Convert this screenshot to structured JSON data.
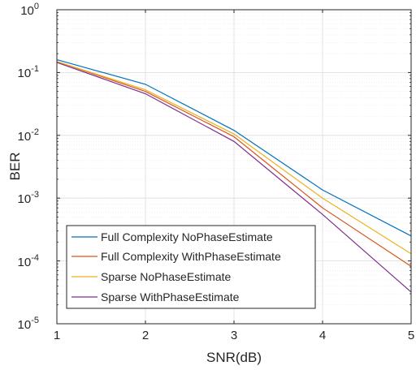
{
  "chart_data": {
    "type": "line",
    "xlabel": "SNR(dB)",
    "ylabel": "BER",
    "xlim": [
      1,
      5
    ],
    "ylim": [
      1e-05,
      1
    ],
    "yscale": "log",
    "grid": true,
    "legend_position": "bottom-left",
    "x_ticks": [
      "1",
      "2",
      "3",
      "4",
      "5"
    ],
    "y_ticks": [
      {
        "base": "10",
        "exp": "0"
      },
      {
        "base": "10",
        "exp": "-1"
      },
      {
        "base": "10",
        "exp": "-2"
      },
      {
        "base": "10",
        "exp": "-3"
      },
      {
        "base": "10",
        "exp": "-4"
      },
      {
        "base": "10",
        "exp": "-5"
      }
    ],
    "x": [
      1,
      2,
      3,
      4,
      5
    ],
    "series": [
      {
        "name": "Full Complexity NoPhaseEstimate",
        "color": "#0072BD",
        "values": [
          0.16,
          0.065,
          0.012,
          0.00135,
          0.00025
        ]
      },
      {
        "name": "Full Complexity WithPhaseEstimate",
        "color": "#D95319",
        "values": [
          0.15,
          0.05,
          0.0095,
          0.0007,
          8.2e-05
        ]
      },
      {
        "name": "Sparse NoPhaseEstimate",
        "color": "#EDB120",
        "values": [
          0.15,
          0.053,
          0.0105,
          0.001,
          0.00013
        ]
      },
      {
        "name": "Sparse WithPhaseEstimate",
        "color": "#7E2F8E",
        "values": [
          0.145,
          0.046,
          0.008,
          0.00055,
          3.2e-05
        ]
      }
    ]
  }
}
